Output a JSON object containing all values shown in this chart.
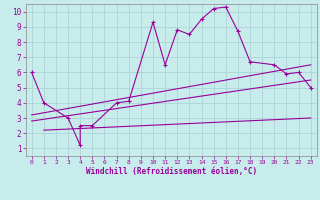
{
  "background_color": "#c8ecec",
  "grid_color": "#b0d8d8",
  "line_color": "#990099",
  "xlabel": "Windchill (Refroidissement éolien,°C)",
  "xlim": [
    -0.5,
    23.5
  ],
  "ylim": [
    0.5,
    10.5
  ],
  "xticks": [
    0,
    1,
    2,
    3,
    4,
    5,
    6,
    7,
    8,
    9,
    10,
    11,
    12,
    13,
    14,
    15,
    16,
    17,
    18,
    19,
    20,
    21,
    22,
    23
  ],
  "yticks": [
    1,
    2,
    3,
    4,
    5,
    6,
    7,
    8,
    9,
    10
  ],
  "series": [
    {
      "x": [
        0,
        1,
        3,
        4,
        4,
        5,
        7,
        8,
        10,
        11,
        12,
        13,
        14,
        15,
        16,
        17,
        18,
        20,
        21,
        22,
        23
      ],
      "y": [
        6,
        4,
        3,
        1.2,
        2.5,
        2.5,
        4.0,
        4.1,
        9.3,
        6.5,
        8.8,
        8.5,
        9.5,
        10.2,
        10.3,
        8.7,
        6.7,
        6.5,
        5.9,
        6.0,
        5.0
      ],
      "marker": true
    },
    {
      "x": [
        0,
        23
      ],
      "y": [
        3.2,
        6.5
      ],
      "marker": false
    },
    {
      "x": [
        0,
        23
      ],
      "y": [
        2.8,
        5.5
      ],
      "marker": false
    },
    {
      "x": [
        1,
        23
      ],
      "y": [
        2.2,
        3.0
      ],
      "marker": false
    }
  ]
}
